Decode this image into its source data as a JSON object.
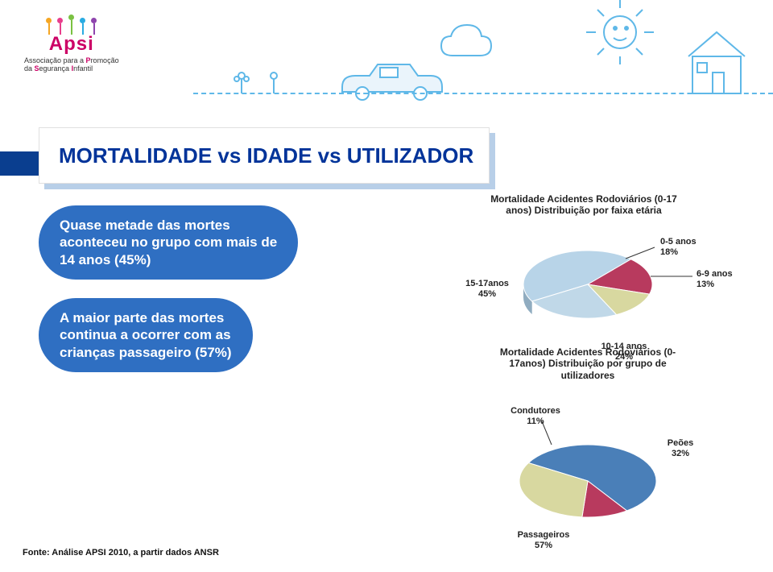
{
  "logo": {
    "name": "Apsi",
    "subtitle_prefix": "Associação para a ",
    "subtitle_p": "P",
    "subtitle_mid": "romoção",
    "subtitle_prefix2": "da ",
    "subtitle_s": "S",
    "subtitle_mid2": "egurança ",
    "subtitle_i": "I",
    "subtitle_end": "nfantil",
    "accent_color": "#cc0066",
    "figure_colors": [
      "#f5a623",
      "#e83e8c",
      "#7ac142",
      "#29abe2",
      "#8e44ad"
    ]
  },
  "title": "MORTALIDADE vs IDADE vs UTILIZADOR",
  "title_color": "#003399",
  "bubbles": {
    "bg": "#2f6fc2",
    "b1_l1": "Quase metade das mortes",
    "b1_l2": "aconteceu no grupo com mais de",
    "b1_l3": "14 anos (45%)",
    "b2_l1": "A maior parte das mortes",
    "b2_l2": "continua a ocorrer com as",
    "b2_l3": "crianças passageiro (57%)"
  },
  "chart_age": {
    "type": "pie-3d",
    "title_l1": "Mortalidade Acidentes Rodoviários (0-17",
    "title_l2": "anos) Distribuição por faixa etária",
    "slices": [
      {
        "label": "15-17anos",
        "pct": "45%",
        "value": 45,
        "color": "#b8d4e8"
      },
      {
        "label": "0-5 anos",
        "pct": "18%",
        "value": 18,
        "color": "#b83a5e"
      },
      {
        "label": "6-9 anos",
        "pct": "13%",
        "value": 13,
        "color": "#d8d8a0"
      },
      {
        "label": "10-14 anos",
        "pct": "24%",
        "value": 24,
        "color": "#c0d8e8"
      }
    ],
    "label_fontsize": 11,
    "label_color": "#222"
  },
  "chart_user": {
    "type": "pie-3d",
    "title_l1": "Mortalidade Acidentes Rodoviários (0-",
    "title_l2": "17anos) Distribuição por grupo de",
    "title_l3": "utilizadores",
    "slices": [
      {
        "label": "Passageiros",
        "pct": "57%",
        "value": 57,
        "color": "#4a7fb8"
      },
      {
        "label": "Condutores",
        "pct": "11%",
        "value": 11,
        "color": "#b83a5e"
      },
      {
        "label": "Peões",
        "pct": "32%",
        "value": 32,
        "color": "#d8d8a0"
      }
    ],
    "label_fontsize": 11,
    "label_color": "#222"
  },
  "footnote": "Fonte: Análise APSI 2010, a partir dados ANSR",
  "doodle_color": "#5fb8e8"
}
